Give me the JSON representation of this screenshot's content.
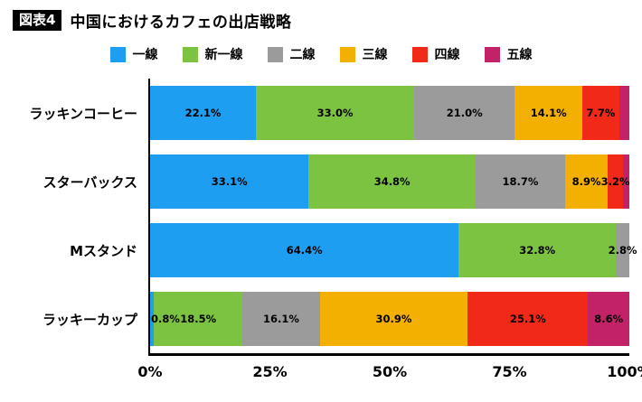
{
  "header": {
    "badge": "図表4",
    "title": "中国におけるカフェの出店戦略"
  },
  "chart_data": {
    "type": "bar",
    "orientation": "horizontal",
    "stacked": true,
    "title": "中国におけるカフェの出店戦略",
    "categories": [
      "ラッキンコーヒー",
      "スターバックス",
      "Mスタンド",
      "ラッキーカップ"
    ],
    "series": [
      {
        "name": "一線",
        "color": "#1E9EF0",
        "values": [
          22.1,
          33.1,
          64.4,
          0.8
        ],
        "labels": [
          "22.1%",
          "33.1%",
          "64.4%",
          "0.8%"
        ]
      },
      {
        "name": "新一線",
        "color": "#7CC342",
        "values": [
          33.0,
          34.8,
          32.8,
          18.5
        ],
        "labels": [
          "33.0%",
          "34.8%",
          "32.8%",
          "18.5%"
        ]
      },
      {
        "name": "二線",
        "color": "#9B9B9B",
        "values": [
          21.0,
          18.7,
          2.8,
          16.1
        ],
        "labels": [
          "21.0%",
          "18.7%",
          "2.8%",
          "16.1%"
        ]
      },
      {
        "name": "三線",
        "color": "#F4B000",
        "values": [
          14.1,
          8.9,
          0,
          30.9
        ],
        "labels": [
          "14.1%",
          "8.9%",
          "",
          "30.9%"
        ]
      },
      {
        "name": "四線",
        "color": "#F02918",
        "values": [
          7.7,
          3.2,
          0,
          25.1
        ],
        "labels": [
          "7.7%",
          "3.2%",
          "",
          "25.1%"
        ]
      },
      {
        "name": "五線",
        "color": "#C22368",
        "values": [
          2.1,
          1.3,
          0,
          8.6
        ],
        "labels": [
          "",
          "",
          "",
          "8.6%"
        ]
      }
    ],
    "x_ticks": [
      "0%",
      "25%",
      "50%",
      "75%",
      "100%"
    ],
    "x_tick_positions": [
      0,
      25,
      50,
      75,
      100
    ],
    "xlim": [
      0,
      100
    ],
    "legend_position": "top",
    "grid": false
  }
}
